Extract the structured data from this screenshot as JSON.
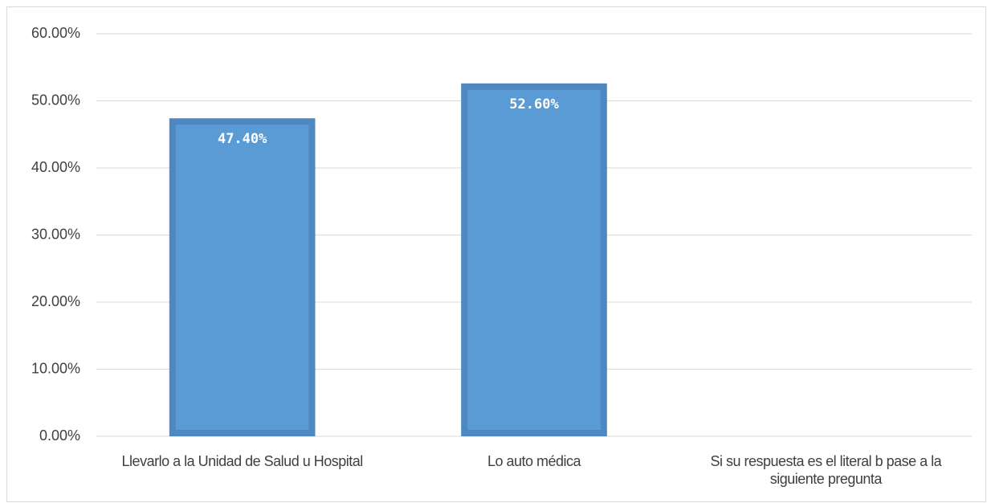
{
  "chart_data": {
    "type": "bar",
    "categories": [
      "Llevarlo a la Unidad de Salud u Hospital",
      "Lo auto médica",
      "Si su respuesta es el literal b pase a la siguiente pregunta"
    ],
    "values": [
      47.4,
      52.6,
      null
    ],
    "value_labels": [
      "47.40%",
      "52.60%",
      null
    ],
    "color": "#5b9bd5",
    "ylim": [
      0,
      60
    ],
    "yticks": [
      {
        "value": 0,
        "label": "0.00%"
      },
      {
        "value": 10,
        "label": "10.00%"
      },
      {
        "value": 20,
        "label": "20.00%"
      },
      {
        "value": 30,
        "label": "30.00%"
      },
      {
        "value": 40,
        "label": "40.00%"
      },
      {
        "value": 50,
        "label": "50.00%"
      },
      {
        "value": 60,
        "label": "60.00%"
      }
    ],
    "grid": true
  }
}
